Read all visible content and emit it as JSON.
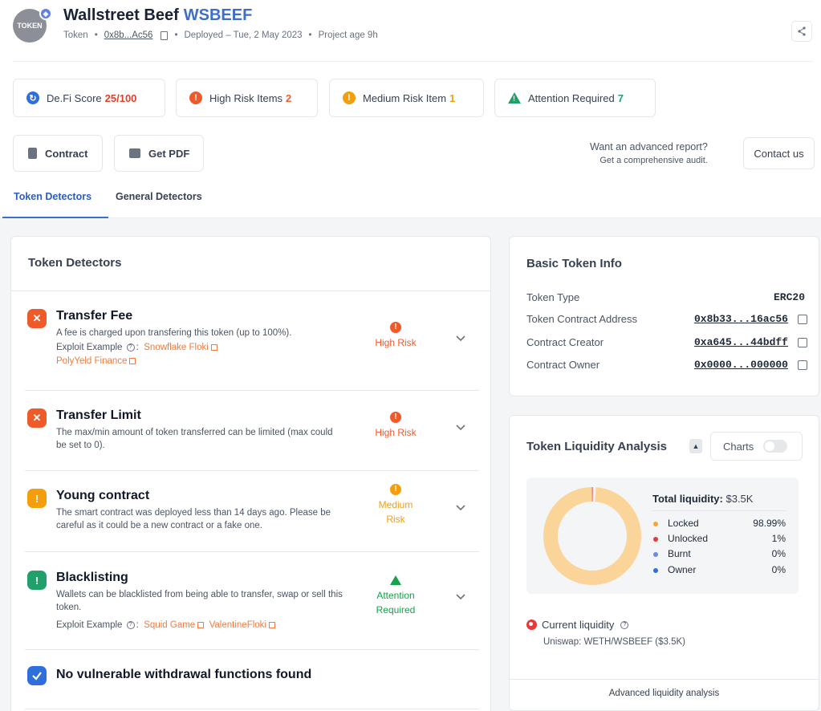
{
  "header": {
    "avatar_text": "TOKEN",
    "chain_icon": "ethereum-icon",
    "name": "Wallstreet Beef",
    "symbol": "WSBEEF",
    "type_label": "Token",
    "address": "0x8b...Ac56",
    "deployed": "Deployed – Tue, 2 May 2023",
    "project_age": "Project age 9h",
    "share_icon": "share-icon"
  },
  "scores": {
    "defi_label": "De.Fi Score",
    "defi_value": "25/100",
    "high_label": "High Risk Items",
    "high_value": "2",
    "medium_label": "Medium Risk Item",
    "medium_value": "1",
    "attention_label": "Attention Required",
    "attention_value": "7",
    "colors": {
      "defi": "#e0402b",
      "high": "#ef5a2b",
      "medium": "#f59e0b",
      "attention": "#22a06b"
    }
  },
  "actions": {
    "contract_label": "Contract",
    "pdf_label": "Get PDF",
    "advanced_title": "Want an advanced report?",
    "advanced_sub": "Get a comprehensive audit.",
    "contact_label": "Contact us"
  },
  "tabs": {
    "active": "Token Detectors",
    "inactive": "General Detectors"
  },
  "detectors": {
    "title": "Token Detectors",
    "items": [
      {
        "name": "Transfer Fee",
        "desc": "A fee is charged upon transfering this token (up to 100%).",
        "exploit_label": "Exploit Example",
        "links": [
          "Snowflake Floki",
          "PolyYeld Finance"
        ],
        "risk": "High Risk"
      },
      {
        "name": "Transfer Limit",
        "desc": "The max/min amount of token transferred can be limited (max could be set to 0).",
        "risk": "High Risk"
      },
      {
        "name": "Young contract",
        "desc": "The smart contract was deployed less than 14 days ago. Please be careful as it could be a new contract or a fake one.",
        "risk": "Medium Risk"
      },
      {
        "name": "Blacklisting",
        "desc": "Wallets can be blacklisted from being able to transfer, swap or sell this token.",
        "exploit_label": "Exploit Example",
        "links": [
          "Squid Game",
          "ValentineFloki"
        ],
        "risk": "Attention Required"
      },
      {
        "name": "No vulnerable withdrawal functions found"
      }
    ]
  },
  "basic_info": {
    "title": "Basic Token Info",
    "rows": [
      {
        "k": "Token Type",
        "v": "ERC20"
      },
      {
        "k": "Token Contract Address",
        "v": "0x8b33...16ac56"
      },
      {
        "k": "Contract Creator",
        "v": "0xa645...44bdff"
      },
      {
        "k": "Contract Owner",
        "v": "0x0000...000000"
      }
    ]
  },
  "liquidity": {
    "title": "Token Liquidity Analysis",
    "charts_label": "Charts",
    "total_label": "Total liquidity:",
    "total_value": "$3.5K",
    "legend": [
      {
        "label": "Locked",
        "value": "98.99%",
        "color": "#f5a53b"
      },
      {
        "label": "Unlocked",
        "value": "1%",
        "color": "#e43a3a"
      },
      {
        "label": "Burnt",
        "value": "0%",
        "color": "#6b8de6"
      },
      {
        "label": "Owner",
        "value": "0%",
        "color": "#2f6fdb"
      }
    ],
    "donut_fraction_locked": 0.9899,
    "donut_colors": {
      "locked": "#fbd49a",
      "unlocked": "#f28b8b"
    },
    "current_label": "Current liquidity",
    "current_sub": "Uniswap: WETH/WSBEEF ($3.5K)",
    "advanced_link": "Advanced liquidity analysis"
  }
}
